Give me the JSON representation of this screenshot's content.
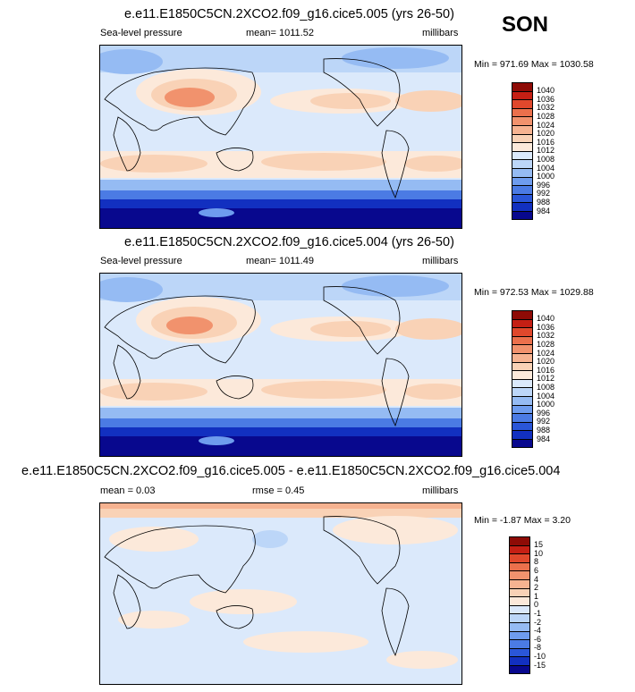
{
  "season": "SON",
  "colors": {
    "abs": [
      "#08088e",
      "#1230c0",
      "#2a56d8",
      "#4b7be4",
      "#6e9cee",
      "#95bbf3",
      "#bcd6f8",
      "#dbe9fb",
      "#fce9da",
      "#f9d2b6",
      "#f6b391",
      "#f1926d",
      "#eb704c",
      "#e0482c",
      "#c51f14",
      "#8e0b06"
    ],
    "diff": [
      "#08088e",
      "#1230c0",
      "#2a56d8",
      "#4b7be4",
      "#6e9cee",
      "#95bbf3",
      "#bcd6f8",
      "#dbe9fb",
      "#fce9da",
      "#f9d2b6",
      "#f6b391",
      "#f1926d",
      "#eb704c",
      "#e0482c",
      "#c51f14",
      "#8e0b06"
    ]
  },
  "chart_data": [
    {
      "type": "heatmap",
      "title": "e.e11.E1850C5CN.2XCO2.f09_g16.cice5.005 (yrs 26-50)",
      "left_label": "Sea-level pressure",
      "center_label": "mean= 1011.52",
      "units": "millibars",
      "minmax": "Min = 971.69 Max = 1030.58",
      "colorbar_labels": [
        "1040",
        "1036",
        "1032",
        "1028",
        "1024",
        "1020",
        "1016",
        "1012",
        "1008",
        "1004",
        "1000",
        "996",
        "992",
        "988",
        "984"
      ],
      "colorbar": "abs"
    },
    {
      "type": "heatmap",
      "title": "e.e11.E1850C5CN.2XCO2.f09_g16.cice5.004 (yrs 26-50)",
      "left_label": "Sea-level pressure",
      "center_label": "mean= 1011.49",
      "units": "millibars",
      "minmax": "Min = 972.53 Max = 1029.88",
      "colorbar_labels": [
        "1040",
        "1036",
        "1032",
        "1028",
        "1024",
        "1020",
        "1016",
        "1012",
        "1008",
        "1004",
        "1000",
        "996",
        "992",
        "988",
        "984"
      ],
      "colorbar": "abs"
    },
    {
      "type": "heatmap",
      "title": "e.e11.E1850C5CN.2XCO2.f09_g16.cice5.005 - e.e11.E1850C5CN.2XCO2.f09_g16.cice5.004",
      "left_label": "mean =  0.03",
      "center_label": "rmse =  0.45",
      "units": "millibars",
      "minmax": "Min =  -1.87 Max =   3.20",
      "colorbar_labels": [
        "15",
        "10",
        "8",
        "6",
        "4",
        "2",
        "1",
        "0",
        "-1",
        "-2",
        "-4",
        "-6",
        "-8",
        "-10",
        "-15"
      ],
      "colorbar": "diff"
    }
  ]
}
